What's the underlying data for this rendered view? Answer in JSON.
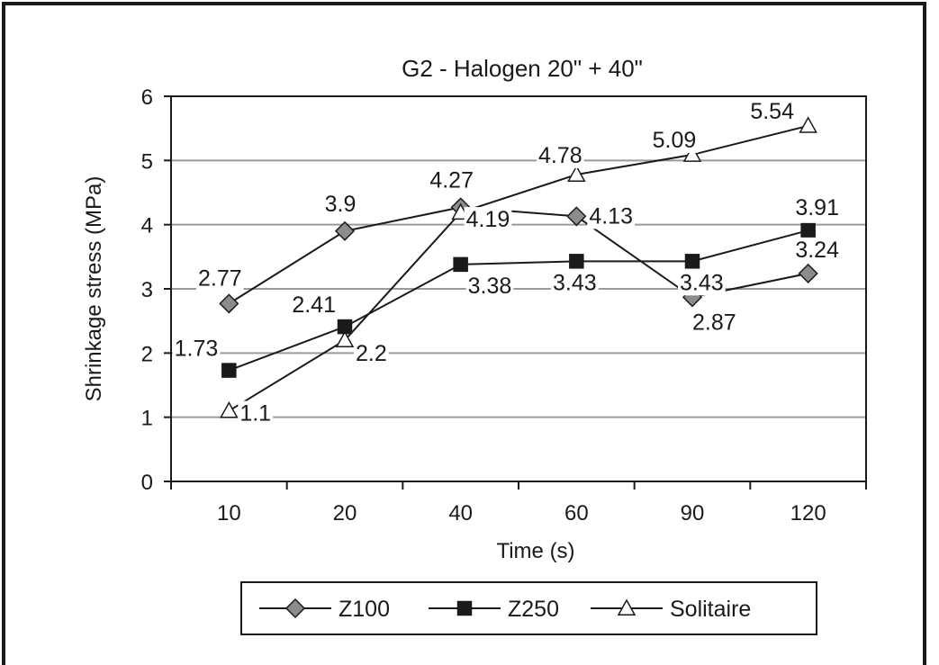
{
  "chart_data": {
    "type": "line",
    "title": "G2 - Halogen 20\" + 40\"",
    "xlabel": "Time (s)",
    "ylabel": "Shrinkage stress (MPa)",
    "categories": [
      "10",
      "20",
      "40",
      "60",
      "90",
      "120"
    ],
    "ylim": [
      0,
      6
    ],
    "yticks": [
      "0",
      "1",
      "2",
      "3",
      "4",
      "5",
      "6"
    ],
    "grid": "horizontal",
    "legend_position": "bottom",
    "series": [
      {
        "name": "Z100",
        "marker": "diamond",
        "marker_color": "#8c8c8c",
        "values": [
          2.77,
          3.9,
          4.27,
          4.13,
          2.87,
          3.24
        ],
        "labels": [
          "2.77",
          "3.9",
          "4.27",
          "4.13",
          "2.87",
          "3.24"
        ]
      },
      {
        "name": "Z250",
        "marker": "square",
        "marker_color": "#1a1a1a",
        "values": [
          1.73,
          2.41,
          3.38,
          3.43,
          3.43,
          3.91
        ],
        "labels": [
          "1.73",
          "2.41",
          "3.38",
          "3.43",
          "3.43",
          "3.91"
        ]
      },
      {
        "name": "Solitaire",
        "marker": "triangle",
        "marker_color": "#ffffff",
        "values": [
          1.1,
          2.2,
          4.19,
          4.78,
          5.09,
          5.54
        ],
        "labels": [
          "1.1",
          "2.2",
          "4.19",
          "4.78",
          "5.09",
          "5.54"
        ]
      }
    ]
  }
}
